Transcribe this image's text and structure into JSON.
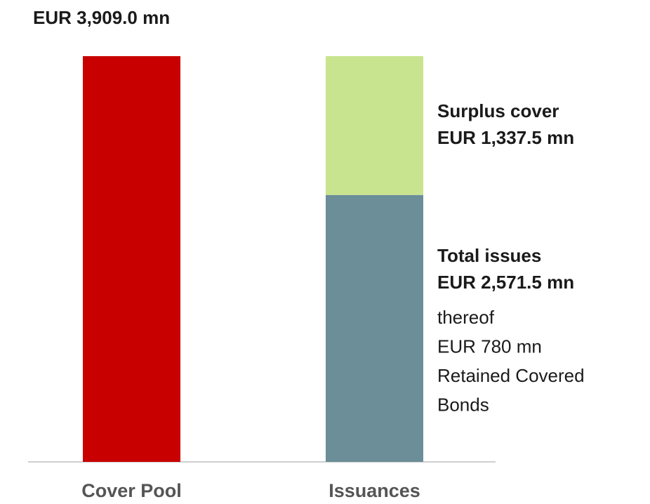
{
  "chart_data": {
    "type": "stacked_bar",
    "categories": [
      "Cover Pool",
      "Issuances"
    ],
    "series": [
      {
        "color": "#c80000",
        "values": [
          3909.0,
          null
        ],
        "value_labels": [
          "EUR 3,909.0 mn",
          null
        ]
      },
      {
        "name": "Total issues",
        "color": "#6b8e98",
        "values": [
          null,
          2571.5
        ],
        "value_labels": [
          null,
          "EUR 2,571.5 mn"
        ],
        "note_lines": [
          "thereof",
          "EUR 780 mn",
          "Retained Covered",
          "Bonds"
        ]
      },
      {
        "name": "Surplus cover",
        "color": "#c9e48e",
        "values": [
          null,
          1337.5
        ],
        "value_labels": [
          null,
          "EUR 1,337.5 mn"
        ]
      }
    ]
  }
}
